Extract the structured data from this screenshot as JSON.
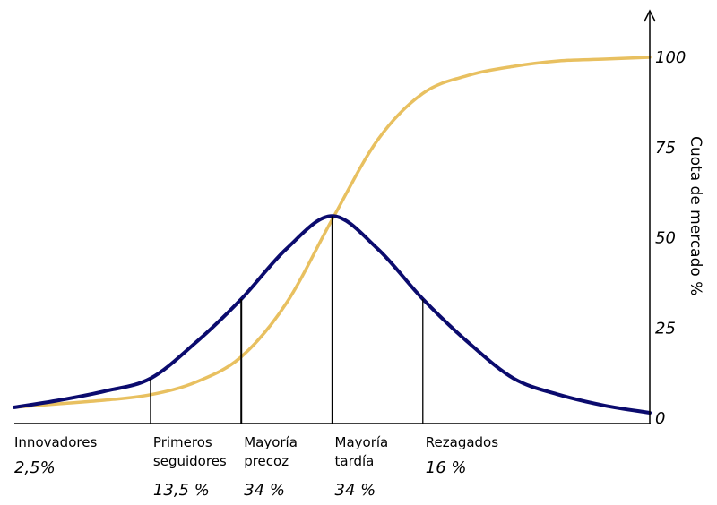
{
  "chart_data": {
    "type": "line",
    "ylabel": "Cuota de mercado %",
    "ylim": [
      0,
      100
    ],
    "yticks": [
      "0",
      "25",
      "50",
      "75",
      "100"
    ],
    "x_range": [
      -3.5,
      3.5
    ],
    "segment_boundaries": [
      -2,
      -1,
      0,
      1
    ],
    "categories": [
      {
        "label": [
          "Innovadores"
        ],
        "share": "2,5%"
      },
      {
        "label": [
          "Primeros",
          "seguidores"
        ],
        "share": "13,5 %"
      },
      {
        "label": [
          "Mayoría",
          "precoz"
        ],
        "share": "34 %"
      },
      {
        "label": [
          "Mayoría",
          "tardía"
        ],
        "share": "34 %"
      },
      {
        "label": [
          "Rezagados"
        ],
        "share": "16 %"
      }
    ],
    "series": [
      {
        "role": "adoption",
        "color": "#0b0b6e",
        "x": [
          -3.5,
          -3.0,
          -2.5,
          -2.0,
          -1.5,
          -1.0,
          -0.5,
          0.0,
          0.5,
          1.0,
          1.5,
          2.0,
          2.5,
          3.0,
          3.5
        ],
        "y": [
          3,
          5,
          7.5,
          11,
          21,
          33,
          47,
          56,
          47,
          33,
          21,
          11,
          6.5,
          3.5,
          1.5
        ]
      },
      {
        "role": "market-share",
        "color": "#e8c060",
        "x": [
          -3.5,
          -3.0,
          -2.5,
          -2.0,
          -1.5,
          -1.0,
          -0.5,
          0.0,
          0.5,
          1.0,
          1.5,
          2.0,
          2.5,
          3.0,
          3.5
        ],
        "y": [
          3,
          4,
          5,
          6.5,
          10,
          17,
          32,
          55,
          77,
          90,
          95,
          97.5,
          99,
          99.5,
          100
        ]
      }
    ]
  }
}
